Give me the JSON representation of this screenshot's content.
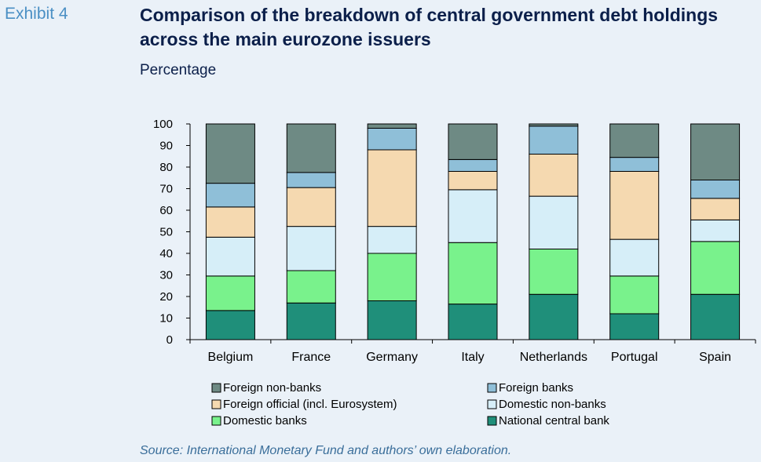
{
  "exhibit_label": "Exhibit 4",
  "title": "Comparison of the breakdown of central government debt holdings across the main eurozone issuers",
  "subtitle": "Percentage",
  "source": "Source: International Monetary Fund and authors’ own elaboration.",
  "chart_data": {
    "type": "bar",
    "stacked": true,
    "categories": [
      "Belgium",
      "France",
      "Germany",
      "Italy",
      "Netherlands",
      "Portugal",
      "Spain"
    ],
    "ylim": [
      0,
      100
    ],
    "yticks": [
      0,
      10,
      20,
      30,
      40,
      50,
      60,
      70,
      80,
      90,
      100
    ],
    "grid": false,
    "legend_position": "bottom",
    "series": [
      {
        "name": "National central bank",
        "color": "#1f8f7a",
        "values": [
          13.5,
          17,
          18,
          16.5,
          21,
          12,
          21
        ]
      },
      {
        "name": "Domestic banks",
        "color": "#79f28c",
        "values": [
          16,
          15,
          22,
          28.5,
          21,
          17.5,
          24.5
        ]
      },
      {
        "name": "Domestic non-banks",
        "color": "#d6eef8",
        "values": [
          18,
          20.5,
          12.5,
          24.5,
          24.5,
          17,
          10
        ]
      },
      {
        "name": "Foreign official (incl. Eurosystem)",
        "color": "#f5d9b0",
        "values": [
          14,
          18,
          35.5,
          8.5,
          19.5,
          31.5,
          10
        ]
      },
      {
        "name": "Foreign banks",
        "color": "#8fbfd8",
        "values": [
          11,
          7,
          10,
          5.5,
          13,
          6.5,
          8.5
        ]
      },
      {
        "name": "Foreign non-banks",
        "color": "#6e8a84",
        "values": [
          27.5,
          22.5,
          2,
          16.5,
          1,
          15.5,
          26
        ]
      }
    ],
    "legend_order": [
      "Foreign non-banks",
      "Foreign banks",
      "Foreign official (incl. Eurosystem)",
      "Domestic non-banks",
      "Domestic banks",
      "National central bank"
    ]
  }
}
